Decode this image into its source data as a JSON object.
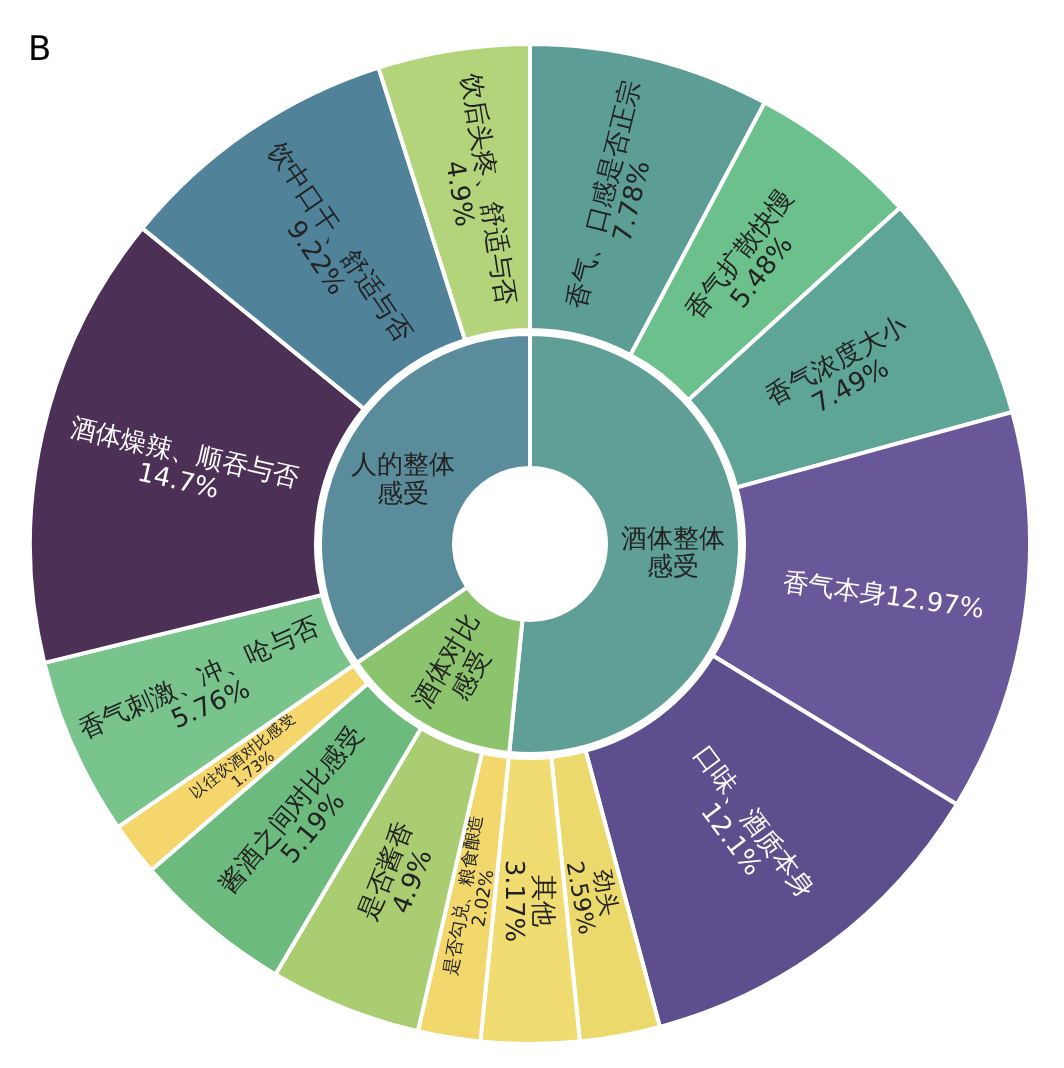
{
  "chart_data": [
    {
      "type": "donut",
      "categories": [
        "酒体整体感受",
        "酒体对比感受",
        "人的整体感受"
      ],
      "values": [
        51.58,
        13.84,
        34.58
      ],
      "colors": [
        "#5f9f96",
        "#8cc46e",
        "#5a8c9b"
      ]
    },
    {
      "type": "donut",
      "title": "B",
      "categories": [
        "香气、口感是否正宗",
        "香气扩散快慢",
        "香气浓度大小",
        "香气本身",
        "口味、酒质本身",
        "劲头",
        "其他",
        "是否勾兑、粮食酿造",
        "是否酱香",
        "酱酒之间对比感受",
        "以往饮酒对比感受",
        "香气刺激、冲、呛与否",
        "酒体燥辣、顺吞与否",
        "饮中口干、舒适与否",
        "饮后头疼、舒适与否"
      ],
      "values": [
        7.78,
        5.48,
        7.49,
        12.97,
        12.1,
        2.59,
        3.17,
        2.02,
        4.9,
        5.19,
        1.73,
        5.76,
        14.7,
        9.22,
        4.9
      ],
      "value_labels": [
        "7.78%",
        "5.48%",
        "7.49%",
        "12.97%",
        "12.1%",
        "2.59%",
        "3.17%",
        "2.02%",
        "4.9%",
        "5.19%",
        "1.73%",
        "5.76%",
        "14.7%",
        "9.22%",
        "4.9%"
      ],
      "colors": [
        "#5c9e95",
        "#6cc08c",
        "#5fa596",
        "#68589a",
        "#5d4e8e",
        "#ecd96c",
        "#f0dc70",
        "#f2d86c",
        "#a9cd70",
        "#6cba7e",
        "#f4d66c",
        "#78c48c",
        "#4c3056",
        "#50839a",
        "#b3d47a"
      ]
    }
  ]
}
